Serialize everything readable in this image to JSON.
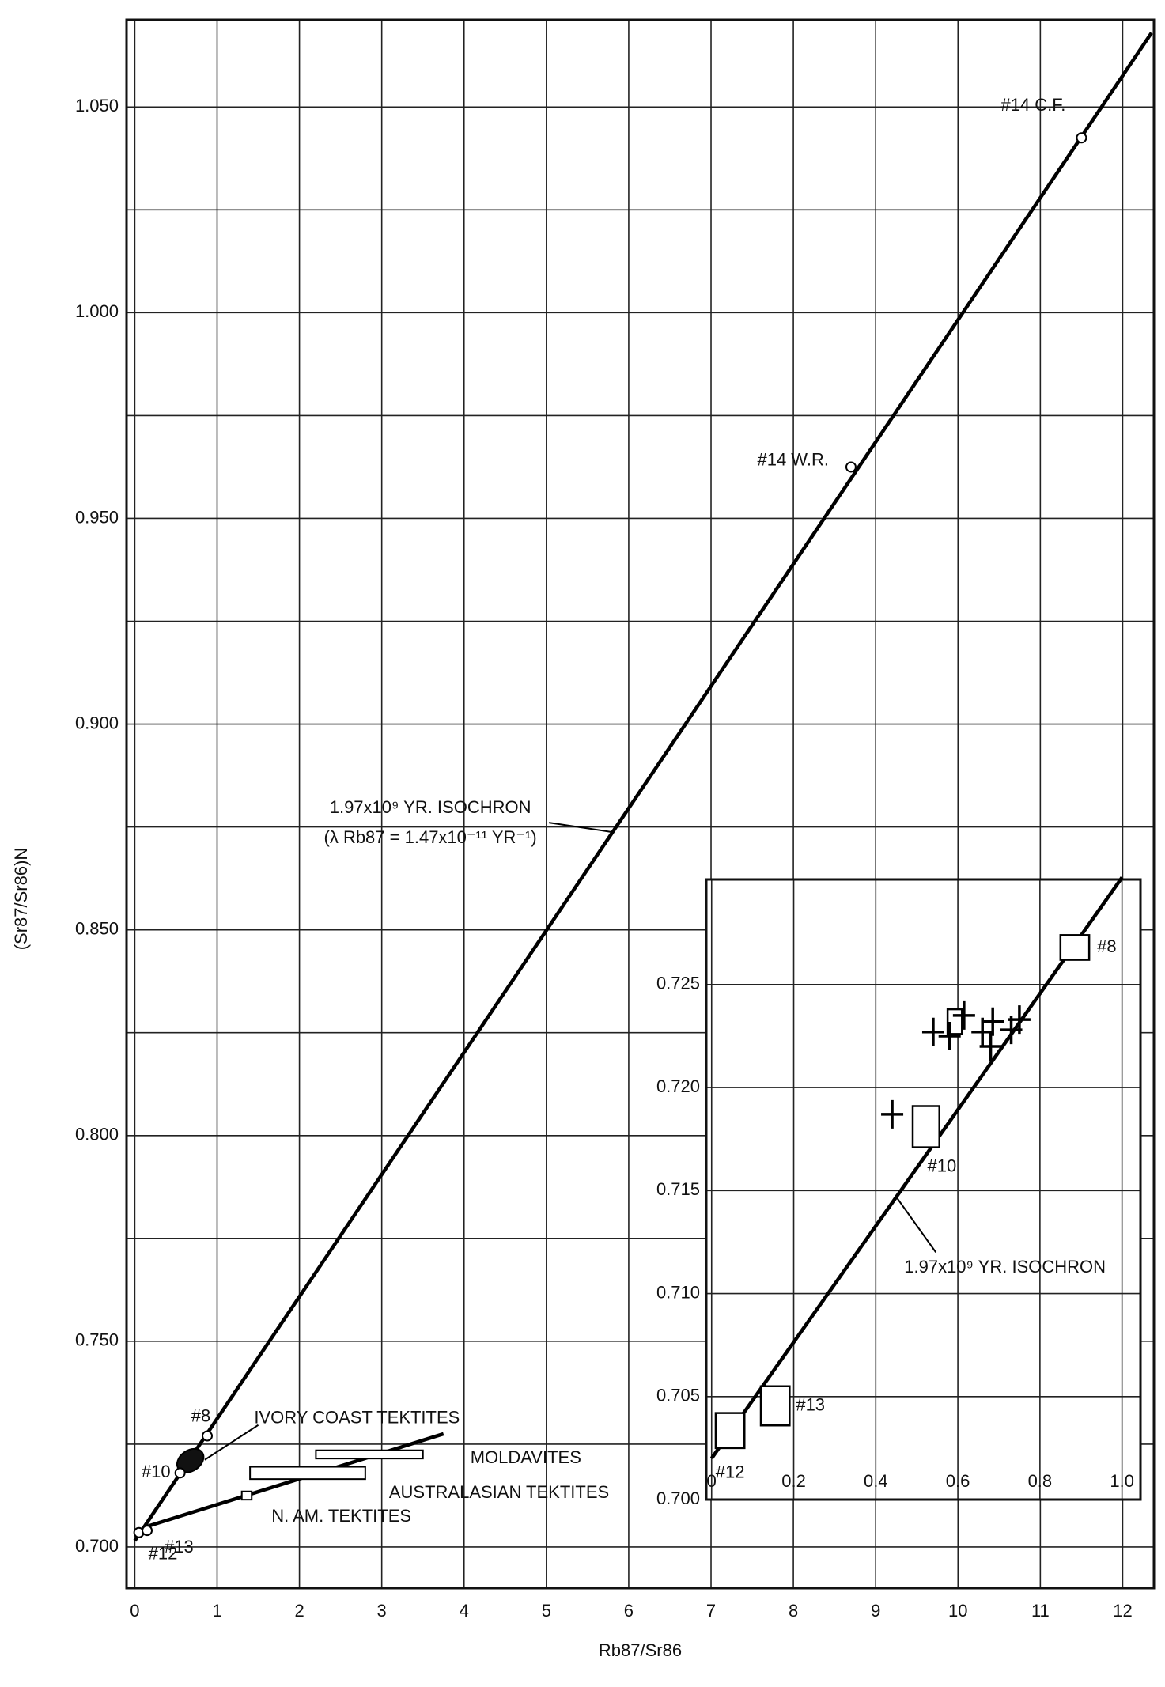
{
  "chart_data": [
    {
      "type": "scatter",
      "xlabel": "Rb87/Sr86",
      "ylabel": "(Sr87/Sr86)N",
      "xlim": [
        -0.1,
        12.38
      ],
      "ylim": [
        0.69,
        1.0712
      ],
      "xticks": [
        0,
        1,
        2,
        3,
        4,
        5,
        6,
        7,
        8,
        9,
        10,
        11,
        12
      ],
      "yticks": [
        {
          "value": 0.7,
          "label": "0.700"
        },
        {
          "value": 0.75,
          "label": "0.750"
        },
        {
          "value": 0.8,
          "label": "0.800"
        },
        {
          "value": 0.85,
          "label": "0.850"
        },
        {
          "value": 0.9,
          "label": "0.900"
        },
        {
          "value": 0.95,
          "label": "0.950"
        },
        {
          "value": 1.0,
          "label": "1.000"
        },
        {
          "value": 1.05,
          "label": "1.050"
        }
      ],
      "y_minor_grid": [
        0.725,
        0.775,
        0.825,
        0.875,
        0.925,
        0.975,
        1.025
      ],
      "grid": true,
      "points": [
        {
          "label": "#12",
          "x": 0.05,
          "y": 0.7035
        },
        {
          "label": "#13",
          "x": 0.15,
          "y": 0.704
        },
        {
          "label": "#10",
          "x": 0.55,
          "y": 0.718
        },
        {
          "label": "#8",
          "x": 0.88,
          "y": 0.727
        },
        {
          "label": "#14 W.R.",
          "x": 8.7,
          "y": 0.9625
        },
        {
          "label": "#14 C.F.",
          "x": 11.5,
          "y": 1.0425
        }
      ],
      "lines": [
        {
          "label": [
            "1.97x10⁹ YR. ISOCHRON",
            "(λ Rb87 = 1.47x10⁻¹¹ YR⁻¹)"
          ],
          "x": [
            0,
            12.35
          ],
          "y": [
            0.7015,
            1.068
          ]
        },
        {
          "x": [
            0.15,
            3.75
          ],
          "y": [
            0.705,
            0.7275
          ]
        }
      ],
      "fields": [
        {
          "label": "IVORY COAST TEKTITES",
          "shape": "ellipse",
          "x": [
            0.5,
            0.85
          ],
          "y": [
            0.7185,
            0.7235
          ]
        },
        {
          "label": "MOLDAVITES",
          "shape": "box",
          "x": [
            2.2,
            3.5
          ],
          "y": [
            0.7215,
            0.7235
          ]
        },
        {
          "label": "AUSTRALASIAN TEKTITES",
          "shape": "box",
          "x": [
            1.4,
            2.8
          ],
          "y": [
            0.7165,
            0.7195
          ]
        },
        {
          "label": "N. AM. TEKTITES",
          "shape": "box",
          "x": [
            1.3,
            1.42
          ],
          "y": [
            0.7115,
            0.7135
          ]
        }
      ]
    },
    {
      "type": "scatter",
      "xlim": [
        -0.013,
        1.045
      ],
      "ylim": [
        0.7,
        0.7301
      ],
      "xticks": [
        0,
        0.2,
        0.4,
        0.6,
        0.8,
        {
          "value": 1.0,
          "label": "1.0"
        }
      ],
      "yticks": [
        {
          "value": 0.7,
          "label": "0.700"
        },
        {
          "value": 0.705,
          "label": "0.705"
        },
        {
          "value": 0.71,
          "label": "0.710"
        },
        {
          "value": 0.715,
          "label": "0.715"
        },
        {
          "value": 0.72,
          "label": "0.720"
        },
        {
          "value": 0.725,
          "label": "0.725"
        }
      ],
      "grid": true,
      "boxes": [
        {
          "label": "#12",
          "x": [
            0.01,
            0.08
          ],
          "y": [
            0.7025,
            0.7042
          ]
        },
        {
          "label": "#13",
          "x": [
            0.12,
            0.19
          ],
          "y": [
            0.7036,
            0.7055
          ]
        },
        {
          "label": "#10",
          "x": [
            0.49,
            0.555
          ],
          "y": [
            0.7171,
            0.7191
          ]
        },
        {
          "label": "#8",
          "x": [
            0.85,
            0.92
          ],
          "y": [
            0.7262,
            0.7274
          ]
        },
        {
          "x": [
            0.575,
            0.61
          ],
          "y": [
            0.7226,
            0.7238
          ]
        }
      ],
      "crosses": [
        {
          "x": 0.44,
          "y": 0.7187
        },
        {
          "x": 0.54,
          "y": 0.7227
        },
        {
          "x": 0.58,
          "y": 0.7225
        },
        {
          "x": 0.615,
          "y": 0.7235
        },
        {
          "x": 0.66,
          "y": 0.7227
        },
        {
          "x": 0.68,
          "y": 0.722
        },
        {
          "x": 0.685,
          "y": 0.7232
        },
        {
          "x": 0.73,
          "y": 0.7228
        },
        {
          "x": 0.75,
          "y": 0.7233
        }
      ],
      "lines": [
        {
          "label": [
            "1.97x10⁹ YR. ISOCHRON"
          ],
          "x": [
            0,
            1.0
          ],
          "y": [
            0.702,
            0.7302
          ]
        }
      ]
    }
  ]
}
